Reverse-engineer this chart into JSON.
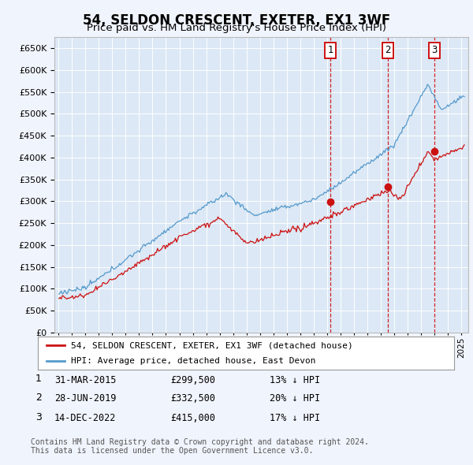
{
  "title": "54, SELDON CRESCENT, EXETER, EX1 3WF",
  "subtitle": "Price paid vs. HM Land Registry's House Price Index (HPI)",
  "ylim": [
    0,
    670000
  ],
  "yticks": [
    0,
    50000,
    100000,
    150000,
    200000,
    250000,
    300000,
    350000,
    400000,
    450000,
    500000,
    550000,
    600000,
    650000
  ],
  "fig_bg": "#f0f4fc",
  "plot_bg": "#dce8f5",
  "grid_color": "#ffffff",
  "hpi_color": "#5599cc",
  "price_color": "#cc1111",
  "vline_color": "#cc0000",
  "legend_entries": [
    "54, SELDON CRESCENT, EXETER, EX1 3WF (detached house)",
    "HPI: Average price, detached house, East Devon"
  ],
  "table_rows": [
    [
      "1",
      "31-MAR-2015",
      "£299,500",
      "13% ↓ HPI"
    ],
    [
      "2",
      "28-JUN-2019",
      "£332,500",
      "20% ↓ HPI"
    ],
    [
      "3",
      "14-DEC-2022",
      "£415,000",
      "17% ↓ HPI"
    ]
  ],
  "sale_prices": [
    299500,
    332500,
    415000
  ],
  "sale_t": [
    2015.25,
    2019.5,
    2022.96
  ],
  "footer": "Contains HM Land Registry data © Crown copyright and database right 2024.\nThis data is licensed under the Open Government Licence v3.0."
}
